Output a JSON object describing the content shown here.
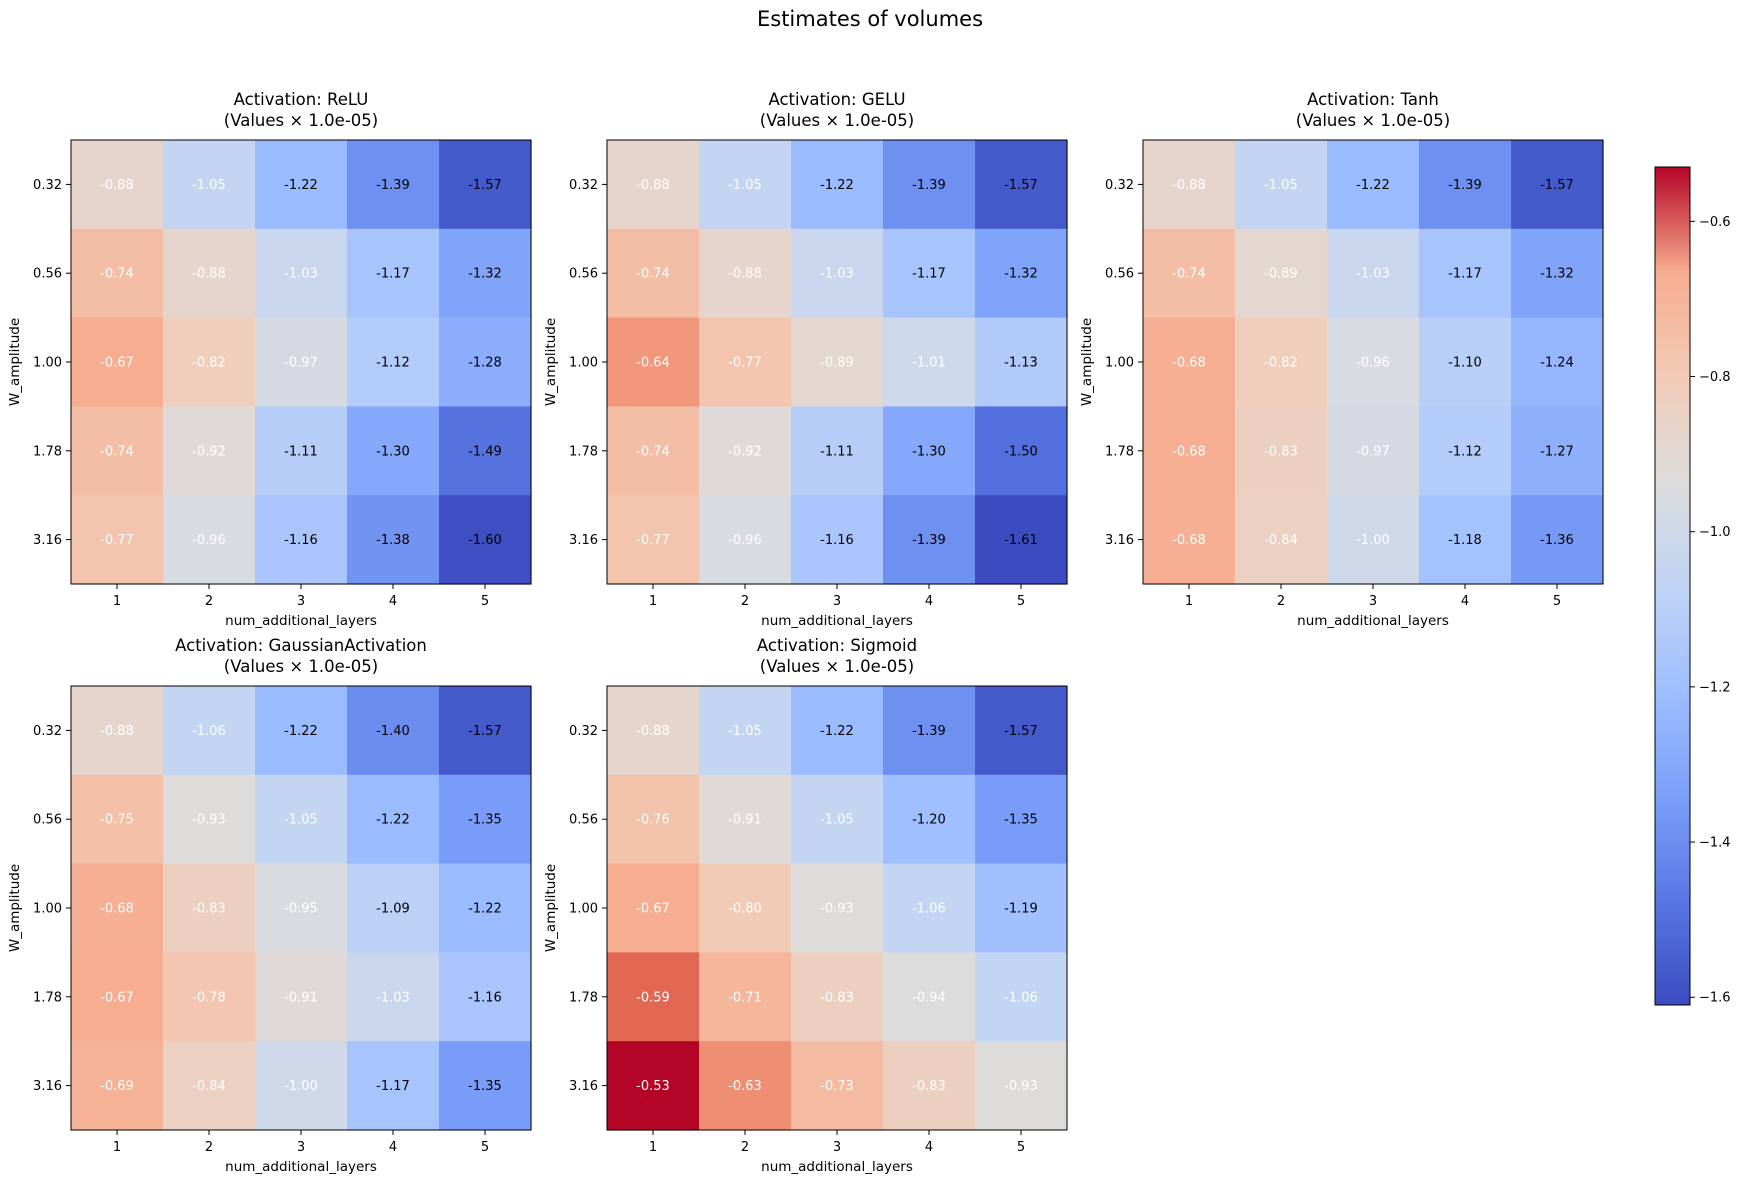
{
  "figure": {
    "title": "Estimates of volumes"
  },
  "chart_data": [
    {
      "type": "heatmap",
      "title": "Activation: ReLU",
      "subtitle": "(Values × 1.0e-05)",
      "xlabel": "num_additional_layers",
      "ylabel": "W_amplitude",
      "x": [
        "1",
        "2",
        "3",
        "4",
        "5"
      ],
      "y": [
        "0.32",
        "0.56",
        "1.00",
        "1.78",
        "3.16"
      ],
      "values": [
        [
          -0.88,
          -1.05,
          -1.22,
          -1.39,
          -1.57
        ],
        [
          -0.74,
          -0.88,
          -1.03,
          -1.17,
          -1.32
        ],
        [
          -0.67,
          -0.82,
          -0.97,
          -1.12,
          -1.28
        ],
        [
          -0.74,
          -0.92,
          -1.11,
          -1.3,
          -1.49
        ],
        [
          -0.77,
          -0.96,
          -1.16,
          -1.38,
          -1.6
        ]
      ],
      "cell_labels": [
        [
          "-0.88",
          "-1.05",
          "-1.22",
          "-1.39",
          "-1.57"
        ],
        [
          "-0.74",
          "-0.88",
          "-1.03",
          "-1.17",
          "-1.32"
        ],
        [
          "-0.67",
          "-0.82",
          "-0.97",
          "-1.12",
          "-1.28"
        ],
        [
          "-0.74",
          "-0.92",
          "-1.11",
          "-1.30",
          "-1.49"
        ],
        [
          "-0.77",
          "-0.96",
          "-1.16",
          "-1.38",
          "-1.60"
        ]
      ]
    },
    {
      "type": "heatmap",
      "title": "Activation: GELU",
      "subtitle": "(Values × 1.0e-05)",
      "xlabel": "num_additional_layers",
      "ylabel": "W_amplitude",
      "x": [
        "1",
        "2",
        "3",
        "4",
        "5"
      ],
      "y": [
        "0.32",
        "0.56",
        "1.00",
        "1.78",
        "3.16"
      ],
      "values": [
        [
          -0.88,
          -1.05,
          -1.22,
          -1.39,
          -1.57
        ],
        [
          -0.74,
          -0.88,
          -1.03,
          -1.17,
          -1.32
        ],
        [
          -0.64,
          -0.77,
          -0.89,
          -1.01,
          -1.13
        ],
        [
          -0.74,
          -0.92,
          -1.11,
          -1.3,
          -1.5
        ],
        [
          -0.77,
          -0.96,
          -1.16,
          -1.39,
          -1.61
        ]
      ],
      "cell_labels": [
        [
          "-0.88",
          "-1.05",
          "-1.22",
          "-1.39",
          "-1.57"
        ],
        [
          "-0.74",
          "-0.88",
          "-1.03",
          "-1.17",
          "-1.32"
        ],
        [
          "-0.64",
          "-0.77",
          "-0.89",
          "-1.01",
          "-1.13"
        ],
        [
          "-0.74",
          "-0.92",
          "-1.11",
          "-1.30",
          "-1.50"
        ],
        [
          "-0.77",
          "-0.96",
          "-1.16",
          "-1.39",
          "-1.61"
        ]
      ]
    },
    {
      "type": "heatmap",
      "title": "Activation: Tanh",
      "subtitle": "(Values × 1.0e-05)",
      "xlabel": "num_additional_layers",
      "ylabel": "W_amplitude",
      "x": [
        "1",
        "2",
        "3",
        "4",
        "5"
      ],
      "y": [
        "0.32",
        "0.56",
        "1.00",
        "1.78",
        "3.16"
      ],
      "values": [
        [
          -0.88,
          -1.05,
          -1.22,
          -1.39,
          -1.57
        ],
        [
          -0.74,
          -0.89,
          -1.03,
          -1.17,
          -1.32
        ],
        [
          -0.68,
          -0.82,
          -0.96,
          -1.1,
          -1.24
        ],
        [
          -0.68,
          -0.83,
          -0.97,
          -1.12,
          -1.27
        ],
        [
          -0.68,
          -0.84,
          -1.0,
          -1.18,
          -1.36
        ]
      ],
      "cell_labels": [
        [
          "-0.88",
          "-1.05",
          "-1.22",
          "-1.39",
          "-1.57"
        ],
        [
          "-0.74",
          "-0.89",
          "-1.03",
          "-1.17",
          "-1.32"
        ],
        [
          "-0.68",
          "-0.82",
          "-0.96",
          "-1.10",
          "-1.24"
        ],
        [
          "-0.68",
          "-0.83",
          "-0.97",
          "-1.12",
          "-1.27"
        ],
        [
          "-0.68",
          "-0.84",
          "-1.00",
          "-1.18",
          "-1.36"
        ]
      ]
    },
    {
      "type": "heatmap",
      "title": "Activation: GaussianActivation",
      "subtitle": "(Values × 1.0e-05)",
      "xlabel": "num_additional_layers",
      "ylabel": "W_amplitude",
      "x": [
        "1",
        "2",
        "3",
        "4",
        "5"
      ],
      "y": [
        "0.32",
        "0.56",
        "1.00",
        "1.78",
        "3.16"
      ],
      "values": [
        [
          -0.88,
          -1.06,
          -1.22,
          -1.4,
          -1.57
        ],
        [
          -0.75,
          -0.93,
          -1.05,
          -1.22,
          -1.35
        ],
        [
          -0.68,
          -0.83,
          -0.95,
          -1.09,
          -1.22
        ],
        [
          -0.67,
          -0.78,
          -0.91,
          -1.03,
          -1.16
        ],
        [
          -0.69,
          -0.84,
          -1.0,
          -1.17,
          -1.35
        ]
      ],
      "cell_labels": [
        [
          "-0.88",
          "-1.06",
          "-1.22",
          "-1.40",
          "-1.57"
        ],
        [
          "-0.75",
          "-0.93",
          "-1.05",
          "-1.22",
          "-1.35"
        ],
        [
          "-0.68",
          "-0.83",
          "-0.95",
          "-1.09",
          "-1.22"
        ],
        [
          "-0.67",
          "-0.78",
          "-0.91",
          "-1.03",
          "-1.16"
        ],
        [
          "-0.69",
          "-0.84",
          "-1.00",
          "-1.17",
          "-1.35"
        ]
      ]
    },
    {
      "type": "heatmap",
      "title": "Activation: Sigmoid",
      "subtitle": "(Values × 1.0e-05)",
      "xlabel": "num_additional_layers",
      "ylabel": "W_amplitude",
      "x": [
        "1",
        "2",
        "3",
        "4",
        "5"
      ],
      "y": [
        "0.32",
        "0.56",
        "1.00",
        "1.78",
        "3.16"
      ],
      "values": [
        [
          -0.88,
          -1.05,
          -1.22,
          -1.39,
          -1.57
        ],
        [
          -0.76,
          -0.91,
          -1.05,
          -1.2,
          -1.35
        ],
        [
          -0.67,
          -0.8,
          -0.93,
          -1.06,
          -1.19
        ],
        [
          -0.59,
          -0.71,
          -0.83,
          -0.94,
          -1.06
        ],
        [
          -0.53,
          -0.63,
          -0.73,
          -0.83,
          -0.93
        ]
      ],
      "cell_labels": [
        [
          "-0.88",
          "-1.05",
          "-1.22",
          "-1.39",
          "-1.57"
        ],
        [
          "-0.76",
          "-0.91",
          "-1.05",
          "-1.20",
          "-1.35"
        ],
        [
          "-0.67",
          "-0.80",
          "-0.93",
          "-1.06",
          "-1.19"
        ],
        [
          "-0.59",
          "-0.71",
          "-0.83",
          "-0.94",
          "-1.06"
        ],
        [
          "-0.53",
          "-0.63",
          "-0.73",
          "-0.83",
          "-0.93"
        ]
      ]
    }
  ],
  "colorbar": {
    "colormap": "coolwarm",
    "vmin": -1.61,
    "vmax": -0.53,
    "ticks": [
      -0.6,
      -0.8,
      -1.0,
      -1.2,
      -1.4,
      -1.6
    ],
    "tick_labels": [
      "−0.6",
      "−0.8",
      "−1.0",
      "−1.2",
      "−1.4",
      "−1.6"
    ]
  }
}
